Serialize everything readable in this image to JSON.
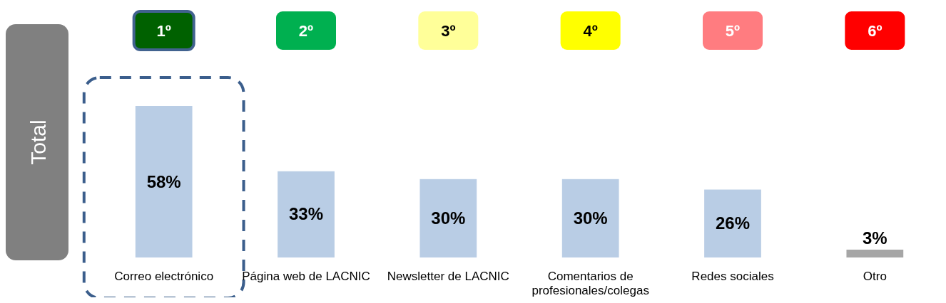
{
  "chart_data": {
    "type": "bar",
    "ylabel": "Total",
    "categories": [
      "Correo electrónico",
      "Página web de LACNIC",
      "Newsletter de LACNIC",
      "Comentarios de profesionales/colegas",
      "Redes sociales",
      "Otro"
    ],
    "values": [
      58,
      33,
      30,
      30,
      26,
      3
    ],
    "colors": [
      "#b9cde5",
      "#b9cde5",
      "#b9cde5",
      "#b9cde5",
      "#b9cde5",
      "#a6a6a6"
    ],
    "value_labels": [
      "58%",
      "33%",
      "30%",
      "30%",
      "26%",
      "3%"
    ],
    "annotations": [
      "1º",
      "2º",
      "3º",
      "4º",
      "5º",
      "6º"
    ]
  }
}
